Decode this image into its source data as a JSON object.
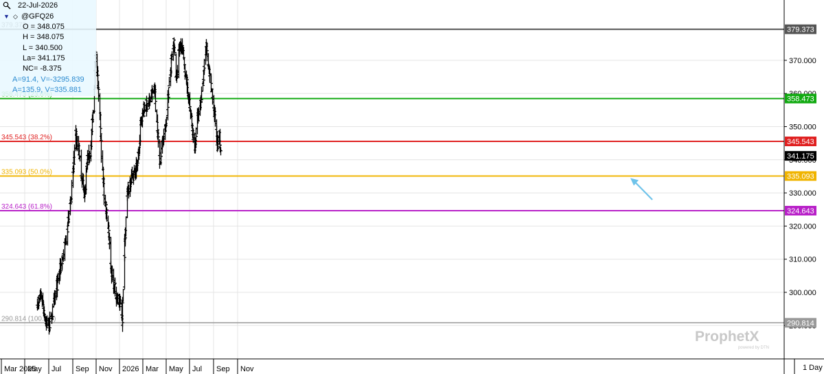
{
  "header": {
    "date": "22-Jul-2026",
    "symbol": "@GFQ26",
    "open": "O = 348.075",
    "high": "H = 348.075",
    "low": "L = 340.500",
    "last": "La= 341.175",
    "net_change": "NC= -8.375",
    "info_a1": "A=91.4, V=-3295.839",
    "info_a2": "A=135.9, V=335.881",
    "icons": {
      "search": "magnifier-icon",
      "series_toggle": "triangle-down-icon",
      "series_marker": "diamond-icon"
    }
  },
  "watermark": {
    "brand": "ProphetX",
    "tagline": "powered by DTN"
  },
  "period_label": "1 Day",
  "colors": {
    "bars": "#000000",
    "high_line": "#555555",
    "fib_236": "#11aa11",
    "fib_382": "#e02020",
    "fib_500": "#f0b400",
    "fib_618": "#b820c8",
    "low_line": "#999999",
    "arrow": "#6fc3ea",
    "last_price_box": "#000000"
  },
  "chart_data": {
    "type": "bar",
    "subtype": "ohlc",
    "series_name": "@GFQ26",
    "period": "daily",
    "ylim": [
      288,
      382
    ],
    "y_ticks": [
      "290.000",
      "300.000",
      "310.000",
      "320.000",
      "330.000",
      "340.000",
      "350.000",
      "360.000",
      "370.000"
    ],
    "x_ticks": [
      "Mar 2025",
      "May",
      "Jul",
      "Sep",
      "Nov",
      "2026",
      "Mar",
      "May",
      "Jul",
      "Sep",
      "Nov"
    ],
    "x_range": [
      "2025-03-01",
      "2026-11-20"
    ],
    "grid": true,
    "last_price": {
      "value": 341.175,
      "label": "341.175"
    },
    "retracement_levels": [
      {
        "value": 379.373,
        "tag": "379.373",
        "axis_label": "379.373",
        "color_key": "high_line"
      },
      {
        "value": 358.473,
        "tag": "358.473 (23.6%)",
        "axis_label": "358.473",
        "color_key": "fib_236"
      },
      {
        "value": 345.543,
        "tag": "345.543 (38.2%)",
        "axis_label": "345.543",
        "color_key": "fib_382"
      },
      {
        "value": 335.093,
        "tag": "335.093 (50.0%)",
        "axis_label": "335.093",
        "color_key": "fib_500"
      },
      {
        "value": 324.643,
        "tag": "324.643 (61.8%)",
        "axis_label": "324.643",
        "color_key": "fib_618"
      },
      {
        "value": 290.814,
        "tag": "290.814 (100.0%)",
        "axis_label": "290.814",
        "color_key": "low_line"
      }
    ],
    "annotations": [
      {
        "type": "arrow",
        "points_to": 335.093
      }
    ],
    "price_path": [
      [
        "2025-06-01",
        296.5
      ],
      [
        "2025-06-12",
        299.0
      ],
      [
        "2025-06-22",
        291.5
      ],
      [
        "2025-07-02",
        290.0
      ],
      [
        "2025-07-10",
        293.5
      ],
      [
        "2025-07-20",
        301.0
      ],
      [
        "2025-08-01",
        308.0
      ],
      [
        "2025-08-12",
        314.0
      ],
      [
        "2025-08-22",
        323.0
      ],
      [
        "2025-08-30",
        332.0
      ],
      [
        "2025-09-08",
        347.0
      ],
      [
        "2025-09-15",
        344.0
      ],
      [
        "2025-09-22",
        336.0
      ],
      [
        "2025-10-01",
        329.5
      ],
      [
        "2025-10-08",
        340.0
      ],
      [
        "2025-10-16",
        342.0
      ],
      [
        "2025-10-24",
        355.0
      ],
      [
        "2025-10-31",
        374.0
      ],
      [
        "2025-11-06",
        360.0
      ],
      [
        "2025-11-11",
        350.0
      ],
      [
        "2025-11-14",
        342.0
      ],
      [
        "2025-11-20",
        330.0
      ],
      [
        "2025-11-30",
        322.0
      ],
      [
        "2025-12-10",
        306.0
      ],
      [
        "2025-12-20",
        300.0
      ],
      [
        "2026-01-02",
        296.0
      ],
      [
        "2026-01-07",
        292.0
      ],
      [
        "2026-01-13",
        316.0
      ],
      [
        "2026-01-20",
        330.0
      ],
      [
        "2026-01-30",
        335.0
      ],
      [
        "2026-02-08",
        336.0
      ],
      [
        "2026-02-14",
        338.0
      ],
      [
        "2026-02-18",
        342.0
      ],
      [
        "2026-02-25",
        353.0
      ],
      [
        "2026-03-08",
        356.0
      ],
      [
        "2026-03-20",
        358.0
      ],
      [
        "2026-03-31",
        362.0
      ],
      [
        "2026-04-04",
        354.0
      ],
      [
        "2026-04-10",
        345.0
      ],
      [
        "2026-04-15",
        340.0
      ],
      [
        "2026-04-20",
        346.0
      ],
      [
        "2026-04-28",
        349.0
      ],
      [
        "2026-05-06",
        360.0
      ],
      [
        "2026-05-14",
        370.0
      ],
      [
        "2026-05-20",
        375.0
      ],
      [
        "2026-05-26",
        364.0
      ],
      [
        "2026-06-02",
        373.0
      ],
      [
        "2026-06-08",
        375.0
      ],
      [
        "2026-06-18",
        367.0
      ],
      [
        "2026-06-26",
        360.0
      ],
      [
        "2026-07-03",
        353.0
      ],
      [
        "2026-07-08",
        347.0
      ],
      [
        "2026-07-14",
        344.0
      ],
      [
        "2026-07-18",
        352.0
      ],
      [
        "2026-07-24",
        353.0
      ],
      [
        "2026-08-02",
        362.0
      ],
      [
        "2026-08-07",
        370.0
      ],
      [
        "2026-08-12",
        374.0
      ],
      [
        "2026-08-17",
        368.0
      ],
      [
        "2026-08-25",
        361.0
      ],
      [
        "2026-09-01",
        355.0
      ],
      [
        "2026-09-06",
        350.0
      ],
      [
        "2026-09-10",
        345.0
      ],
      [
        "2026-09-15",
        347.0
      ],
      [
        "2026-09-18",
        341.2
      ]
    ]
  }
}
